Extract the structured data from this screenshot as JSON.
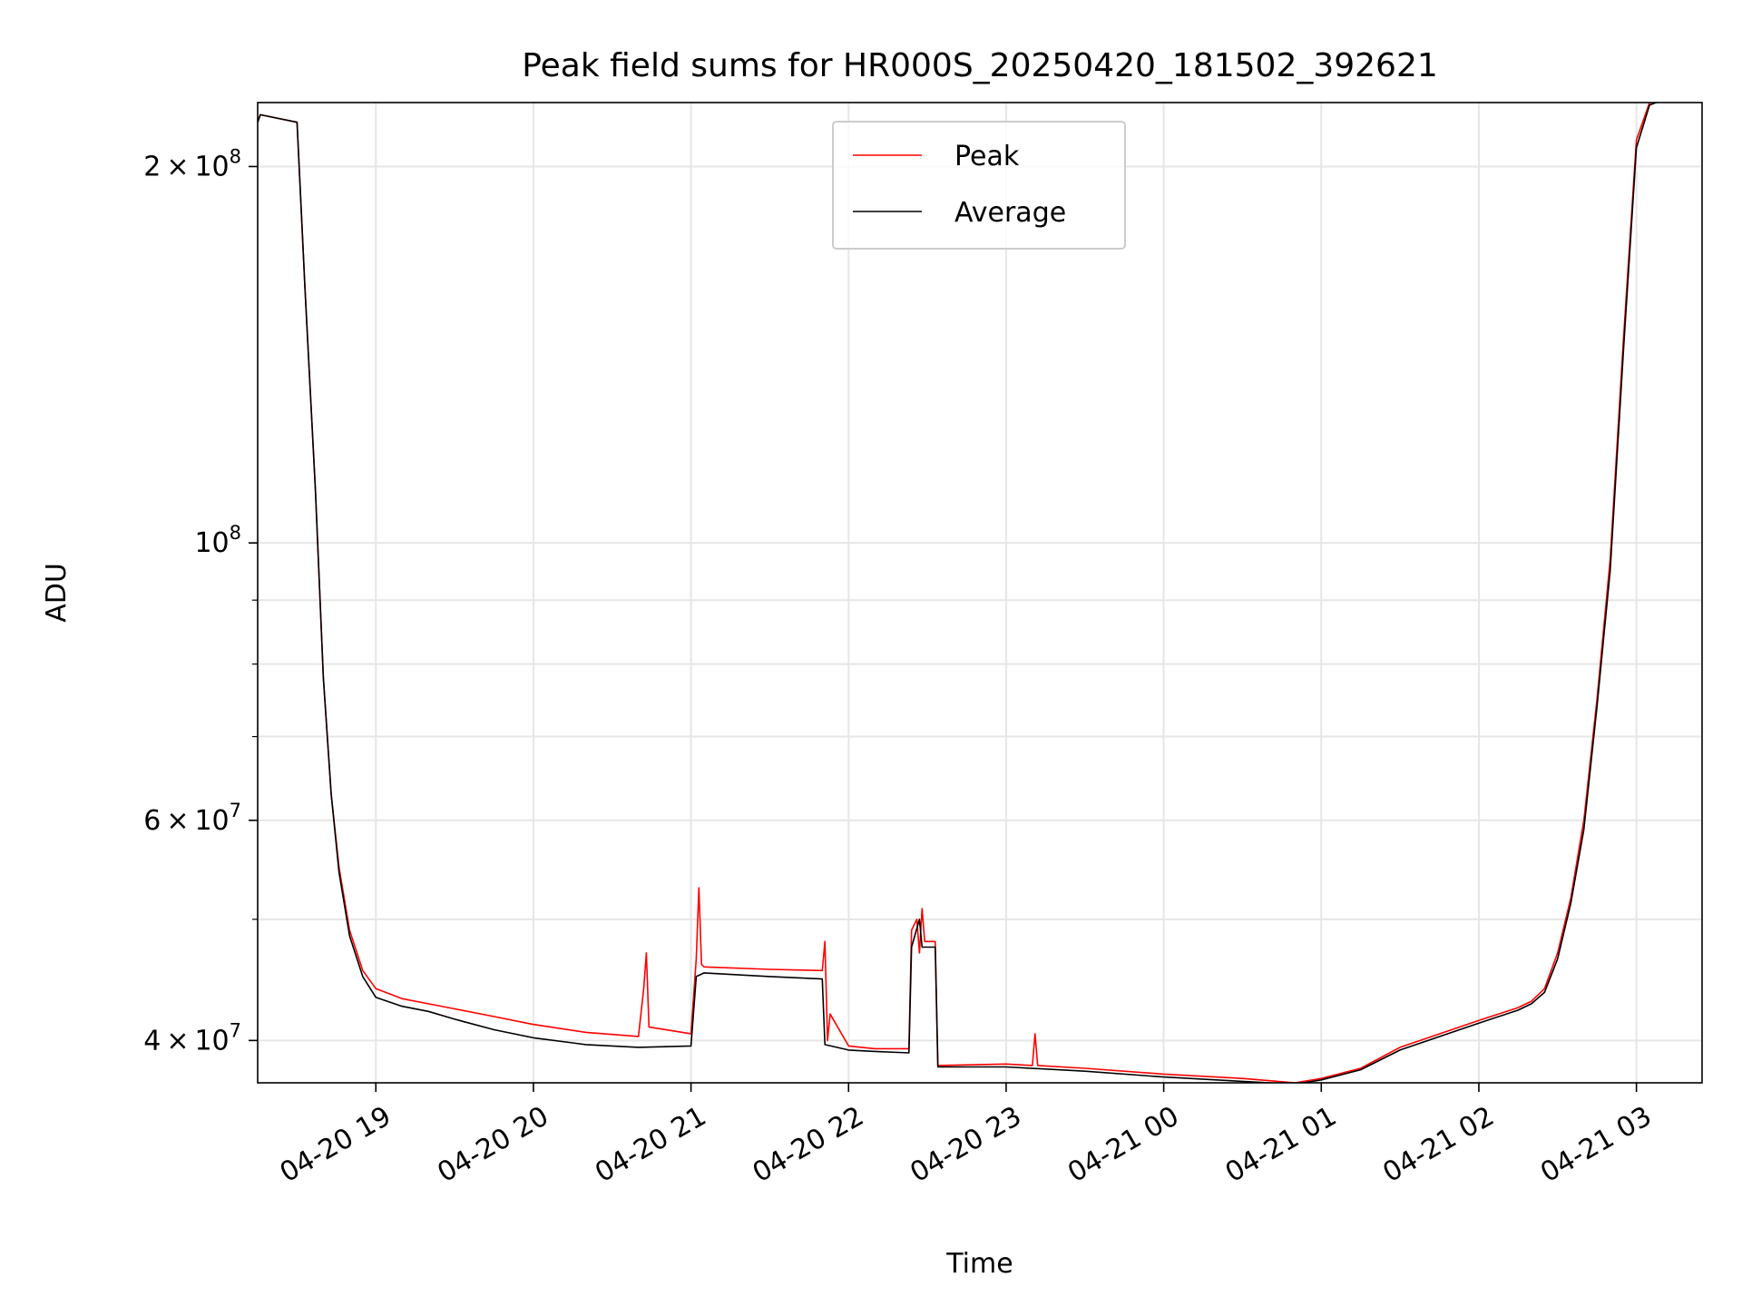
{
  "chart_data": {
    "type": "line",
    "title": "Peak field sums for HR000S_20250420_181502_392621",
    "xlabel": "Time",
    "ylabel": "ADU",
    "yscale": "log",
    "xlim": [
      "2025-04-20T18:15:00",
      "2025-04-21T03:25:00"
    ],
    "ylim": [
      37000000,
      225000000
    ],
    "grid": true,
    "legend_position": "top-center",
    "x_ticks": [
      "2025-04-20T19:00",
      "2025-04-20T20:00",
      "2025-04-20T21:00",
      "2025-04-20T22:00",
      "2025-04-20T23:00",
      "2025-04-21T00:00",
      "2025-04-21T01:00",
      "2025-04-21T02:00",
      "2025-04-21T03:00"
    ],
    "x_tick_labels": [
      "04-20 19",
      "04-20 20",
      "04-20 21",
      "04-20 22",
      "04-20 23",
      "04-21 00",
      "04-21 01",
      "04-21 02",
      "04-21 03"
    ],
    "y_major_ticks": [
      {
        "value": 40000000,
        "mantissa": "4",
        "exponent": "7"
      },
      {
        "value": 60000000,
        "mantissa": "6",
        "exponent": "7"
      },
      {
        "value": 100000000,
        "mantissa": "",
        "exponent": "8"
      },
      {
        "value": 200000000,
        "mantissa": "2",
        "exponent": "8"
      }
    ],
    "y_minor_ticks": [
      50000000,
      70000000,
      80000000,
      90000000
    ],
    "series": [
      {
        "name": "Peak",
        "color": "#ff0000",
        "x": [
          "2025-04-20T18:15",
          "2025-04-20T18:16",
          "2025-04-20T18:30",
          "2025-04-20T18:33",
          "2025-04-20T18:37",
          "2025-04-20T18:40",
          "2025-04-20T18:43",
          "2025-04-20T18:46",
          "2025-04-20T18:50",
          "2025-04-20T18:55",
          "2025-04-20T19:00",
          "2025-04-20T19:10",
          "2025-04-20T19:20",
          "2025-04-20T19:30",
          "2025-04-20T19:45",
          "2025-04-20T20:00",
          "2025-04-20T20:20",
          "2025-04-20T20:40",
          "2025-04-20T20:42",
          "2025-04-20T20:43",
          "2025-04-20T20:44",
          "2025-04-20T21:00",
          "2025-04-20T21:02",
          "2025-04-20T21:03",
          "2025-04-20T21:04",
          "2025-04-20T21:05",
          "2025-04-20T21:30",
          "2025-04-20T21:50",
          "2025-04-20T21:51",
          "2025-04-20T21:52",
          "2025-04-20T21:53",
          "2025-04-20T22:00",
          "2025-04-20T22:10",
          "2025-04-20T22:23",
          "2025-04-20T22:24",
          "2025-04-20T22:26",
          "2025-04-20T22:27",
          "2025-04-20T22:28",
          "2025-04-20T22:29",
          "2025-04-20T22:33",
          "2025-04-20T22:34",
          "2025-04-20T23:00",
          "2025-04-20T23:10",
          "2025-04-20T23:11",
          "2025-04-20T23:12",
          "2025-04-20T23:30",
          "2025-04-21T00:00",
          "2025-04-21T00:30",
          "2025-04-21T00:50",
          "2025-04-21T01:00",
          "2025-04-21T01:15",
          "2025-04-21T01:30",
          "2025-04-21T02:00",
          "2025-04-21T02:15",
          "2025-04-21T02:20",
          "2025-04-21T02:25",
          "2025-04-21T02:30",
          "2025-04-21T02:35",
          "2025-04-21T02:40",
          "2025-04-21T02:45",
          "2025-04-21T02:50",
          "2025-04-21T02:55",
          "2025-04-21T03:00",
          "2025-04-21T03:05",
          "2025-04-21T03:10"
        ],
        "y": [
          217000000,
          220000000,
          217000000,
          160000000,
          110000000,
          78000000,
          63000000,
          55000000,
          49000000,
          45500000,
          44000000,
          43200000,
          42800000,
          42400000,
          41800000,
          41200000,
          40600000,
          40300000,
          44000000,
          47000000,
          41000000,
          40500000,
          46500000,
          53000000,
          46000000,
          45800000,
          45600000,
          45500000,
          48000000,
          40000000,
          42000000,
          39600000,
          39400000,
          39400000,
          49000000,
          50000000,
          47000000,
          51000000,
          48000000,
          48000000,
          38200000,
          38300000,
          38200000,
          40500000,
          38200000,
          38000000,
          37600000,
          37300000,
          37000000,
          37300000,
          38000000,
          39500000,
          41500000,
          42500000,
          43000000,
          44000000,
          47000000,
          52000000,
          60000000,
          75000000,
          97000000,
          145000000,
          210000000,
          225000000,
          226000000
        ]
      },
      {
        "name": "Average",
        "color": "#000000",
        "x": [
          "2025-04-20T18:15",
          "2025-04-20T18:16",
          "2025-04-20T18:30",
          "2025-04-20T18:33",
          "2025-04-20T18:37",
          "2025-04-20T18:40",
          "2025-04-20T18:43",
          "2025-04-20T18:46",
          "2025-04-20T18:50",
          "2025-04-20T18:55",
          "2025-04-20T19:00",
          "2025-04-20T19:10",
          "2025-04-20T19:20",
          "2025-04-20T19:30",
          "2025-04-20T19:45",
          "2025-04-20T20:00",
          "2025-04-20T20:20",
          "2025-04-20T20:40",
          "2025-04-20T21:00",
          "2025-04-20T21:02",
          "2025-04-20T21:05",
          "2025-04-20T21:30",
          "2025-04-20T21:50",
          "2025-04-20T21:51",
          "2025-04-20T22:00",
          "2025-04-20T22:10",
          "2025-04-20T22:23",
          "2025-04-20T22:24",
          "2025-04-20T22:27",
          "2025-04-20T22:28",
          "2025-04-20T22:33",
          "2025-04-20T22:34",
          "2025-04-20T23:00",
          "2025-04-20T23:30",
          "2025-04-21T00:00",
          "2025-04-21T00:30",
          "2025-04-21T00:50",
          "2025-04-21T01:00",
          "2025-04-21T01:15",
          "2025-04-21T01:30",
          "2025-04-21T02:00",
          "2025-04-21T02:15",
          "2025-04-21T02:20",
          "2025-04-21T02:25",
          "2025-04-21T02:30",
          "2025-04-21T02:35",
          "2025-04-21T02:40",
          "2025-04-21T02:45",
          "2025-04-21T02:50",
          "2025-04-21T02:55",
          "2025-04-21T03:00",
          "2025-04-21T03:05",
          "2025-04-21T03:10"
        ],
        "y": [
          217000000,
          220000000,
          217000000,
          160000000,
          110000000,
          78000000,
          63000000,
          54500000,
          48500000,
          45000000,
          43300000,
          42600000,
          42200000,
          41600000,
          40800000,
          40200000,
          39700000,
          39500000,
          39600000,
          45000000,
          45300000,
          45000000,
          44800000,
          39700000,
          39300000,
          39200000,
          39100000,
          47500000,
          50000000,
          47500000,
          47500000,
          38100000,
          38100000,
          37800000,
          37400000,
          37100000,
          36900000,
          37200000,
          37900000,
          39300000,
          41300000,
          42300000,
          42800000,
          43700000,
          46500000,
          51500000,
          59000000,
          74000000,
          95000000,
          142000000,
          207000000,
          224000000,
          226000000
        ]
      }
    ]
  }
}
